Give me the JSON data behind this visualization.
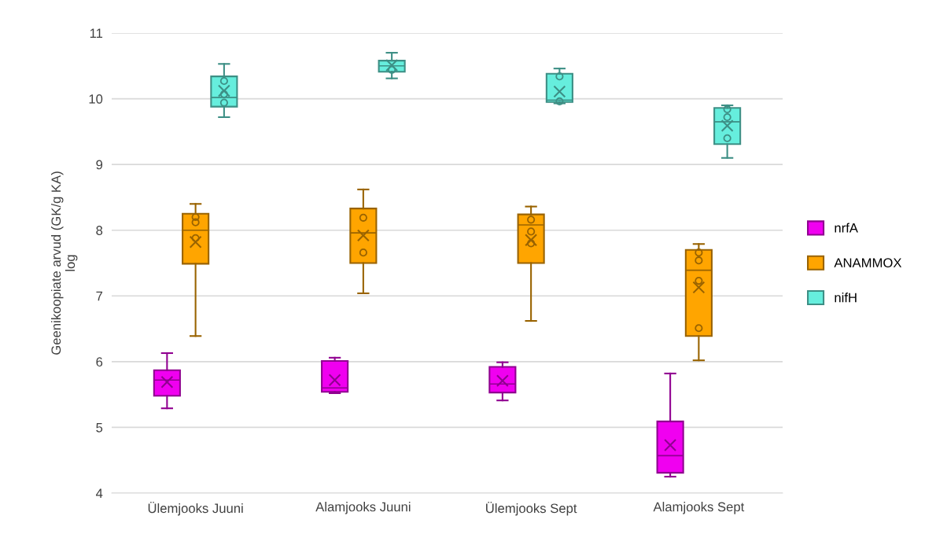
{
  "chart_data": {
    "type": "box",
    "ylabel": "Geenikoopiate arvud (GK/g KA)\nlog",
    "categories": [
      "Ülemjooks Juuni",
      "Alamjooks Juuni",
      "Ülemjooks Sept",
      "Alamjooks Sept"
    ],
    "ylim": [
      4,
      11
    ],
    "yticks": [
      4,
      5,
      6,
      7,
      8,
      9,
      10,
      11
    ],
    "grid": "y",
    "legend": "right",
    "series": [
      {
        "name": "nrfA",
        "color": "#f000f0",
        "boxes": [
          {
            "low": 5.29,
            "q1": 5.48,
            "median": 5.72,
            "q3": 5.87,
            "high": 6.13,
            "mean": 5.69
          },
          {
            "low": 5.52,
            "q1": 5.54,
            "median": 5.6,
            "q3": 6.01,
            "high": 6.06,
            "mean": 5.72
          },
          {
            "low": 5.41,
            "q1": 5.53,
            "median": 5.66,
            "q3": 5.92,
            "high": 5.99,
            "mean": 5.71
          },
          {
            "low": 4.25,
            "q1": 4.31,
            "median": 4.57,
            "q3": 5.09,
            "high": 5.82,
            "mean": 4.73
          }
        ]
      },
      {
        "name": "ANAMMOX",
        "color": "#ffa500",
        "boxes": [
          {
            "low": 6.39,
            "q1": 7.49,
            "median": 8.0,
            "q3": 8.25,
            "high": 8.4,
            "mean": 7.82,
            "outliers": [
              8.2,
              8.12,
              7.88
            ]
          },
          {
            "low": 7.04,
            "q1": 7.5,
            "median": 7.96,
            "q3": 8.33,
            "high": 8.62,
            "mean": 7.92,
            "outliers": [
              8.19,
              7.66
            ]
          },
          {
            "low": 6.62,
            "q1": 7.5,
            "median": 8.08,
            "q3": 8.24,
            "high": 8.36,
            "mean": 7.85,
            "outliers": [
              8.16,
              7.98,
              7.8
            ]
          },
          {
            "low": 6.02,
            "q1": 6.39,
            "median": 7.39,
            "q3": 7.7,
            "high": 7.79,
            "mean": 7.13,
            "outliers": [
              7.66,
              7.54,
              7.23,
              6.51
            ]
          }
        ]
      },
      {
        "name": "nifH",
        "color": "#66eedd",
        "boxes": [
          {
            "low": 9.72,
            "q1": 9.88,
            "median": 10.02,
            "q3": 10.34,
            "high": 10.53,
            "mean": 10.12,
            "outliers": [
              10.27,
              10.07,
              9.94
            ]
          },
          {
            "low": 10.31,
            "q1": 10.41,
            "median": 10.5,
            "q3": 10.58,
            "high": 10.7,
            "mean": 10.51,
            "outliers": [
              10.44
            ]
          },
          {
            "low": 9.93,
            "q1": 9.95,
            "median": 9.98,
            "q3": 10.38,
            "high": 10.46,
            "mean": 10.11,
            "outliers": [
              10.34,
              9.96
            ]
          },
          {
            "low": 9.1,
            "q1": 9.31,
            "median": 9.65,
            "q3": 9.86,
            "high": 9.9,
            "mean": 9.59,
            "outliers": [
              9.84,
              9.72,
              9.4
            ]
          }
        ]
      }
    ]
  }
}
